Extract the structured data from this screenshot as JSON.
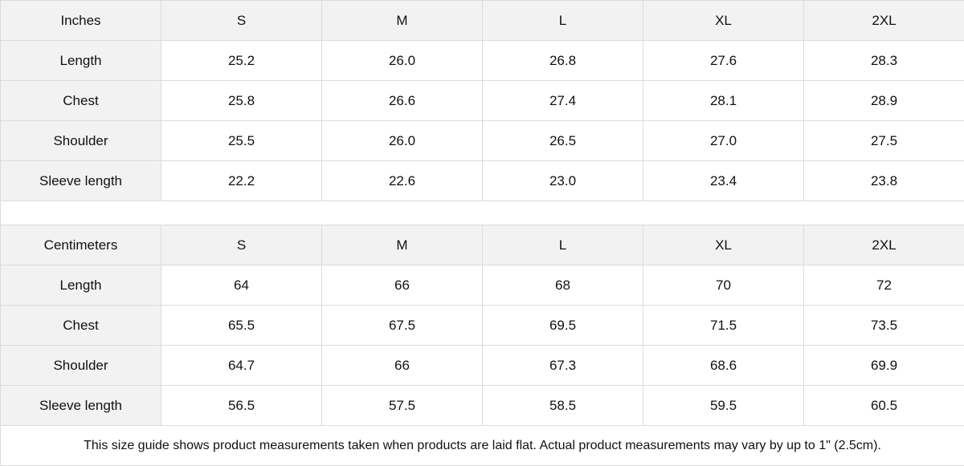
{
  "tables": [
    {
      "unit": "Inches",
      "sizes": [
        "S",
        "M",
        "L",
        "XL",
        "2XL"
      ],
      "rows": [
        {
          "label": "Length",
          "values": [
            "25.2",
            "26.0",
            "26.8",
            "27.6",
            "28.3"
          ]
        },
        {
          "label": "Chest",
          "values": [
            "25.8",
            "26.6",
            "27.4",
            "28.1",
            "28.9"
          ]
        },
        {
          "label": "Shoulder",
          "values": [
            "25.5",
            "26.0",
            "26.5",
            "27.0",
            "27.5"
          ]
        },
        {
          "label": "Sleeve length",
          "values": [
            "22.2",
            "22.6",
            "23.0",
            "23.4",
            "23.8"
          ]
        }
      ]
    },
    {
      "unit": "Centimeters",
      "sizes": [
        "S",
        "M",
        "L",
        "XL",
        "2XL"
      ],
      "rows": [
        {
          "label": "Length",
          "values": [
            "64",
            "66",
            "68",
            "70",
            "72"
          ]
        },
        {
          "label": "Chest",
          "values": [
            "65.5",
            "67.5",
            "69.5",
            "71.5",
            "73.5"
          ]
        },
        {
          "label": "Shoulder",
          "values": [
            "64.7",
            "66",
            "67.3",
            "68.6",
            "69.9"
          ]
        },
        {
          "label": "Sleeve length",
          "values": [
            "56.5",
            "57.5",
            "58.5",
            "59.5",
            "60.5"
          ]
        }
      ]
    }
  ],
  "note": "This size guide shows product measurements taken when products are laid flat.  Actual product measurements may vary by up to 1\" (2.5cm)."
}
